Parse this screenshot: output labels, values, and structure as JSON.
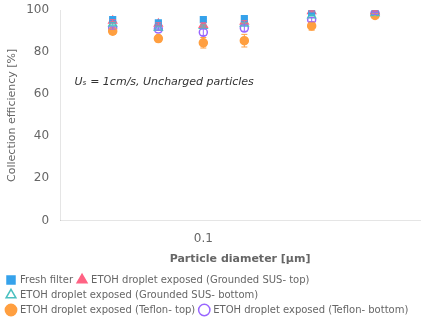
{
  "chart_data": {
    "type": "scatter",
    "xlabel": "Particle diameter [μm]",
    "ylabel": "Collection efficiency [%]",
    "annotation": "Uₛ = 1cm/s, Uncharged particles",
    "log": "x",
    "xlim": [
      0.04,
      0.4
    ],
    "xticks": [
      0.1
    ],
    "ylim": [
      0,
      100
    ],
    "yticks": [
      0,
      20,
      40,
      60,
      80,
      100
    ],
    "grid": false,
    "legend": "lower left",
    "x": [
      0.056,
      0.075,
      0.1,
      0.13,
      0.2,
      0.3
    ],
    "series": [
      {
        "name": "Fresh filter",
        "marker": "square",
        "values": [
          95.5,
          94.0,
          95.5,
          96.0,
          99.0,
          99.5
        ],
        "yerr": [
          0.5,
          0.5,
          0.5,
          0.5,
          0.5,
          0.3
        ]
      },
      {
        "name": "ETOH droplet exposed (Grounded SUS- top)",
        "marker": "triangle",
        "values": [
          95.0,
          93.5,
          93.0,
          94.5,
          99.5,
          99.5
        ],
        "yerr": [
          0.5,
          0.5,
          1.0,
          0.5,
          0.3,
          0.3
        ]
      },
      {
        "name": "ETOH droplet exposed (Grounded SUS- bottom)",
        "marker": "open_triangle",
        "values": [
          93.5,
          91.5,
          92.5,
          93.5,
          97.5,
          98.5
        ],
        "yerr": [
          0.5,
          0.5,
          0.5,
          0.5,
          0.3,
          0.3
        ]
      },
      {
        "name": "ETOH droplet exposed (Teflon- top)",
        "marker": "circle",
        "values": [
          90.0,
          86.5,
          84.5,
          85.5,
          92.5,
          97.5
        ],
        "yerr": [
          1.5,
          1.5,
          2.5,
          3.0,
          2.0,
          1.0
        ]
      },
      {
        "name": "ETOH droplet exposed (Teflon- bottom)",
        "marker": "open_circle",
        "values": [
          91.5,
          91.0,
          89.5,
          91.5,
          95.5,
          98.5
        ],
        "yerr": [
          0.5,
          0.5,
          1.5,
          1.5,
          1.0,
          0.5
        ]
      }
    ]
  }
}
